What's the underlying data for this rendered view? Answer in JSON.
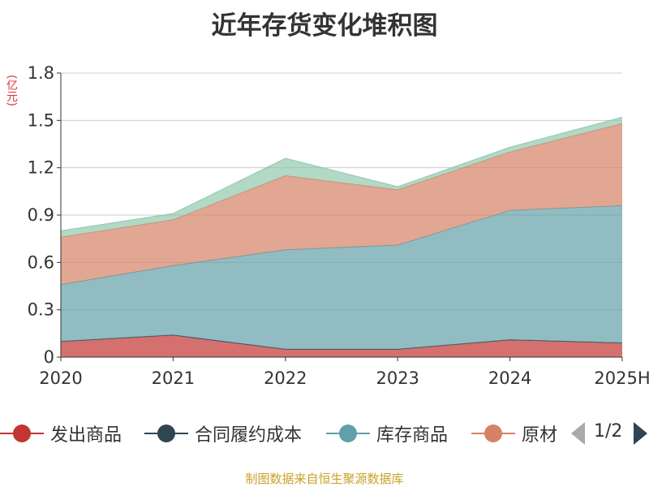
{
  "chart_data": {
    "type": "area",
    "stacked": true,
    "title": "近年存货变化堆积图",
    "ylabel": "(亿元)",
    "xlabel": "",
    "categories": [
      "2020",
      "2021",
      "2022",
      "2023",
      "2024",
      "2025H"
    ],
    "ylim": [
      0,
      1.8
    ],
    "yticks": [
      "0",
      "0.3",
      "0.6",
      "0.9",
      "1.2",
      "1.5",
      "1.8"
    ],
    "grid": true,
    "legend_position": "bottom",
    "series": [
      {
        "name": "发出商品",
        "color": "#c23531",
        "values": [
          0.1,
          0.14,
          0.05,
          0.05,
          0.11,
          0.09
        ]
      },
      {
        "name": "合同履约成本",
        "color": "#2f4554",
        "values": [
          0,
          0,
          0,
          0,
          0,
          0
        ]
      },
      {
        "name": "库存商品",
        "color": "#61a0a8",
        "values": [
          0.36,
          0.44,
          0.63,
          0.66,
          0.82,
          0.87
        ]
      },
      {
        "name": "原材料",
        "color": "#d48265",
        "values": [
          0.3,
          0.29,
          0.47,
          0.35,
          0.37,
          0.52
        ]
      },
      {
        "name": "",
        "color": "#91c7ae",
        "values": [
          0.04,
          0.04,
          0.11,
          0.02,
          0.03,
          0.04
        ]
      }
    ]
  },
  "legend": {
    "items": [
      {
        "label": "发出商品",
        "color": "#c23531"
      },
      {
        "label": "合同履约成本",
        "color": "#2f4554"
      },
      {
        "label": "库存商品",
        "color": "#61a0a8"
      },
      {
        "label": "原材",
        "color": "#d48265"
      }
    ],
    "page_text": "1/2",
    "prev_color": "#aaaaaa",
    "next_color": "#2f4554"
  },
  "source_note": "制图数据来自恒生聚源数据库"
}
